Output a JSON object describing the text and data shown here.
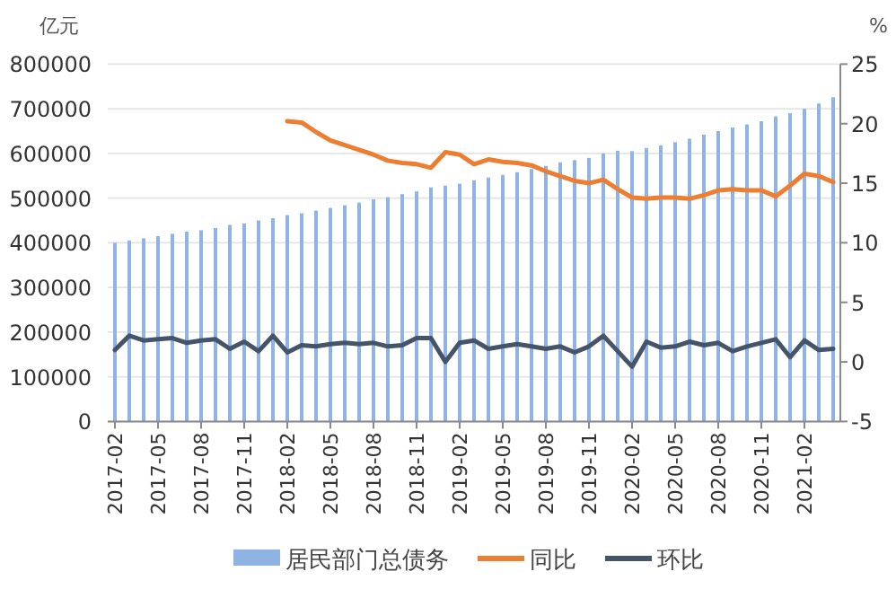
{
  "chart_data": {
    "type": "bar",
    "ylabel": "亿元",
    "y2label": "%",
    "categories": [
      "2017-02",
      null,
      null,
      "2017-05",
      null,
      null,
      "2017-08",
      null,
      null,
      "2017-11",
      null,
      null,
      "2018-02",
      null,
      null,
      "2018-05",
      null,
      null,
      "2018-08",
      null,
      null,
      "2018-11",
      null,
      null,
      "2019-02",
      null,
      null,
      "2019-05",
      null,
      null,
      "2019-08",
      null,
      null,
      "2019-11",
      null,
      null,
      "2020-02",
      null,
      null,
      "2020-05",
      null,
      null,
      "2020-08",
      null,
      null,
      "2020-11",
      null,
      null,
      "2021-02",
      null,
      null
    ],
    "series": [
      {
        "name": "居民部门总债务",
        "color": "#8fb4e3",
        "values": [
          400000,
          405000,
          410000,
          415000,
          420000,
          425000,
          428000,
          433000,
          440000,
          443000,
          450000,
          455000,
          462000,
          466000,
          472000,
          478000,
          484000,
          490000,
          497000,
          502000,
          509000,
          515000,
          524000,
          528000,
          532000,
          540000,
          546000,
          552000,
          558000,
          565000,
          572000,
          580000,
          585000,
          590000,
          600000,
          606000,
          605000,
          612000,
          618000,
          625000,
          633000,
          642000,
          650000,
          658000,
          665000,
          672000,
          683000,
          690000,
          700000,
          712000,
          726000
        ]
      },
      {
        "name": "同比",
        "type": "line",
        "axis": "y2",
        "color": "#ed7d31",
        "values": [
          null,
          null,
          null,
          null,
          null,
          null,
          null,
          null,
          null,
          null,
          null,
          null,
          20.2,
          20.1,
          19.3,
          18.6,
          18.2,
          17.8,
          17.4,
          16.9,
          16.7,
          16.6,
          16.3,
          17.6,
          17.4,
          16.6,
          17.0,
          16.8,
          16.7,
          16.5,
          16.0,
          15.6,
          15.2,
          15.0,
          15.3,
          14.5,
          13.8,
          13.7,
          13.8,
          13.8,
          13.7,
          14.0,
          14.4,
          14.5,
          14.4,
          14.4,
          13.9,
          14.8,
          15.8,
          15.6,
          15.1
        ]
      },
      {
        "name": "环比",
        "type": "line",
        "axis": "y2",
        "color": "#44546a",
        "values": [
          1.0,
          2.2,
          1.8,
          1.9,
          2.0,
          1.6,
          1.8,
          1.9,
          1.1,
          1.7,
          0.9,
          2.2,
          0.8,
          1.4,
          1.3,
          1.5,
          1.6,
          1.5,
          1.6,
          1.3,
          1.4,
          2.0,
          2.0,
          0.0,
          1.6,
          1.8,
          1.1,
          1.3,
          1.5,
          1.3,
          1.1,
          1.3,
          0.8,
          1.3,
          2.2,
          0.9,
          -0.4,
          1.7,
          1.2,
          1.3,
          1.7,
          1.4,
          1.6,
          0.9,
          1.3,
          1.6,
          1.9,
          0.4,
          1.8,
          1.0,
          1.1
        ]
      }
    ],
    "ylim": [
      0,
      800000
    ],
    "yticks": [
      0,
      100000,
      200000,
      300000,
      400000,
      500000,
      600000,
      700000,
      800000
    ],
    "y2lim": [
      -5,
      25
    ],
    "y2ticks": [
      -5,
      0,
      5,
      10,
      15,
      20,
      25
    ],
    "grid": "y",
    "legend": "bottom"
  }
}
